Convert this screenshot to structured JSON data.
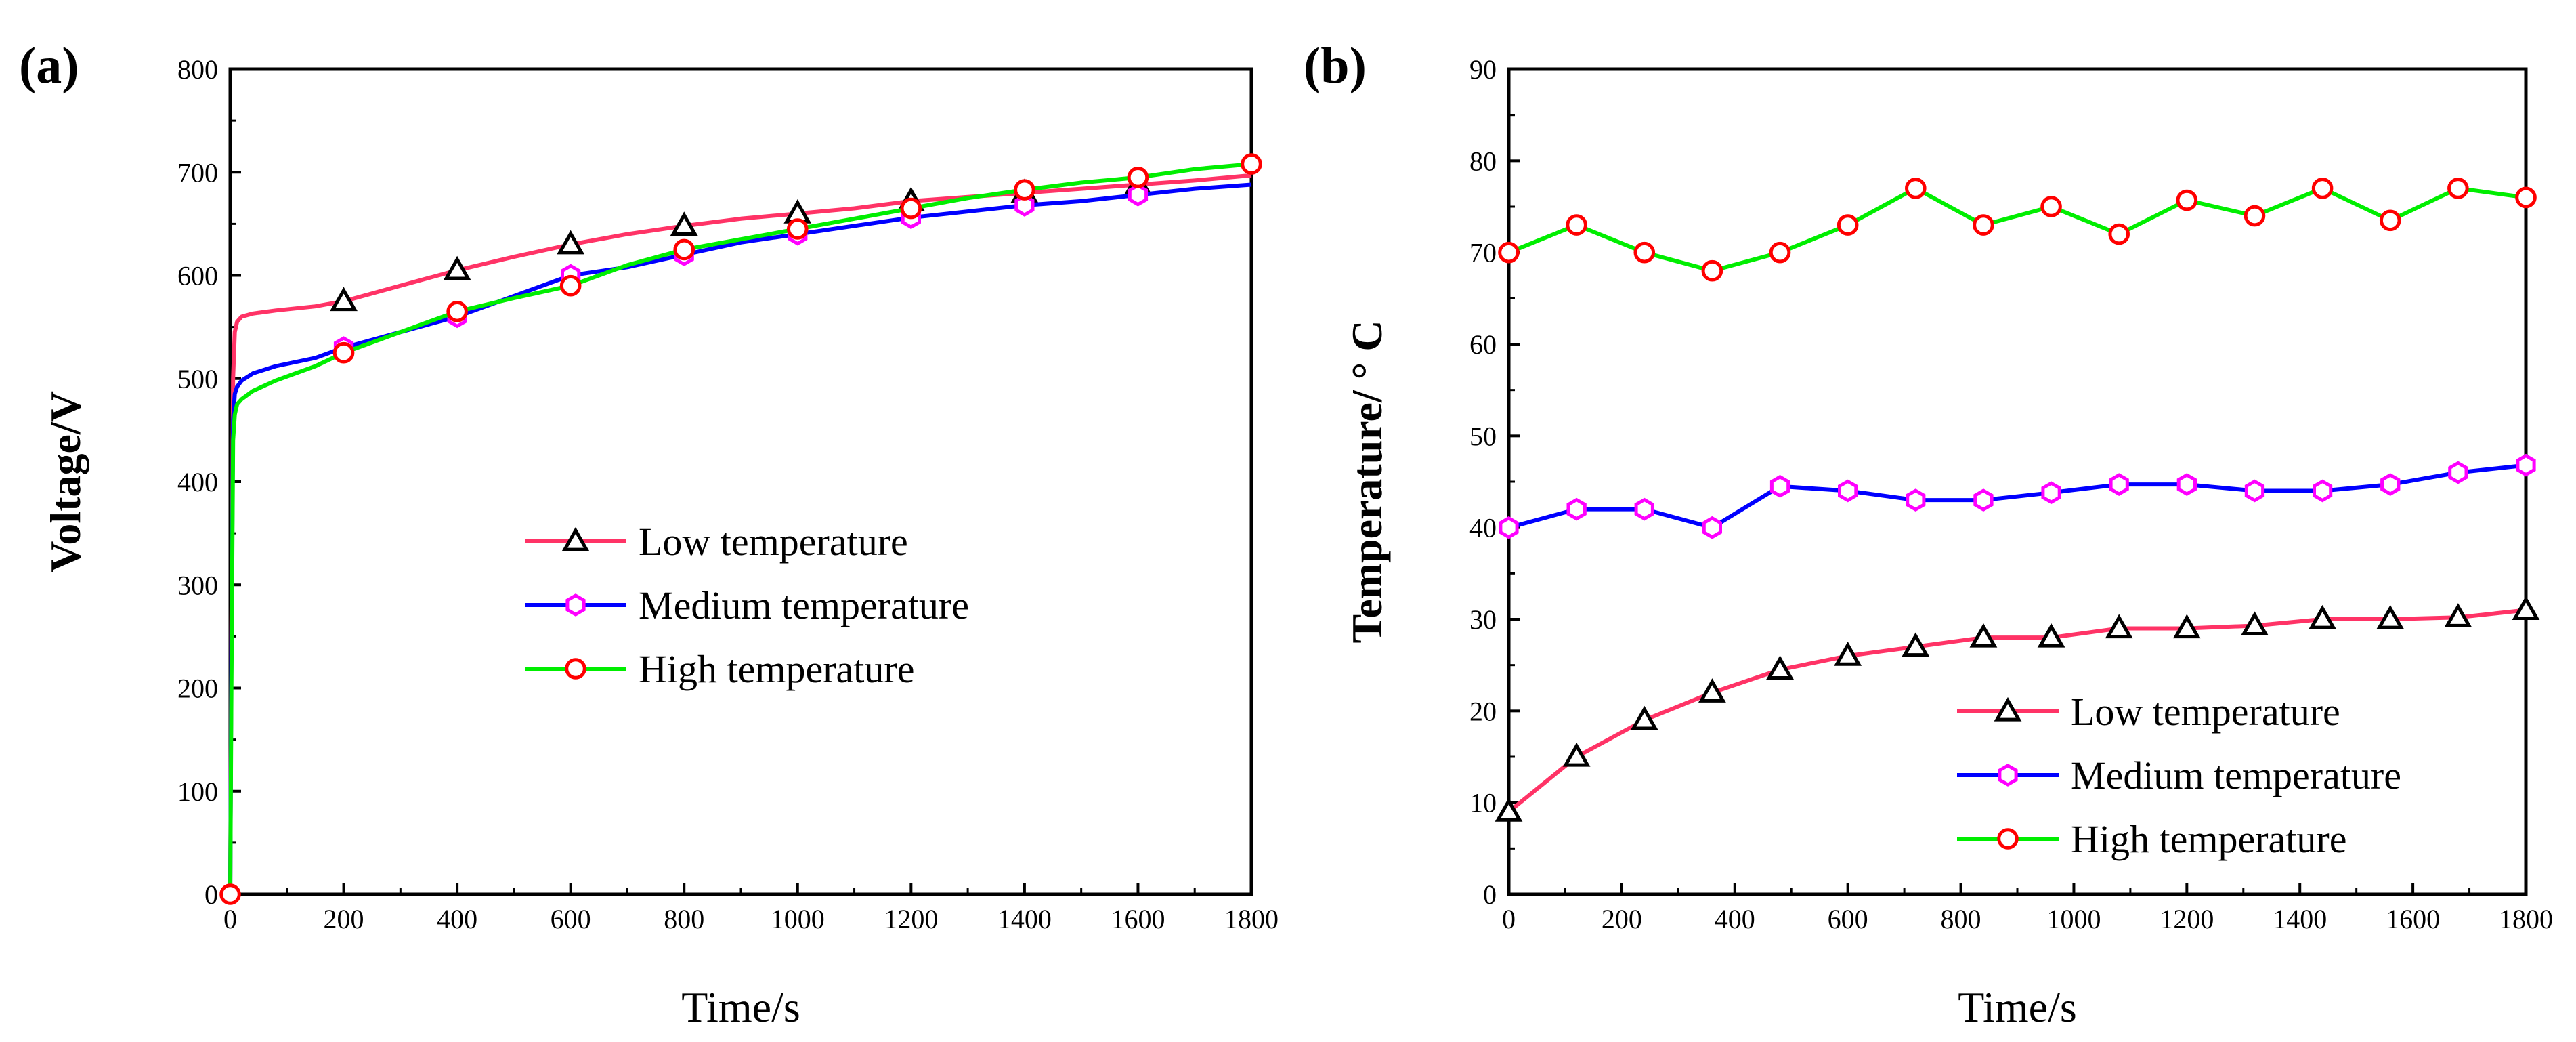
{
  "chart_data": [
    {
      "panel_label": "(a)",
      "type": "line",
      "xlabel": "Time/s",
      "ylabel": "Voltage/V",
      "xlim": [
        0,
        1800
      ],
      "ylim": [
        0,
        800
      ],
      "xticks": [
        0,
        200,
        400,
        600,
        800,
        1000,
        1200,
        1400,
        1600,
        1800
      ],
      "yticks": [
        0,
        100,
        200,
        300,
        400,
        500,
        600,
        700,
        800
      ],
      "legend_position": "center",
      "series": [
        {
          "name": "Low temperature",
          "color": "#ff3366",
          "marker": "triangle",
          "marker_color": "#000000",
          "x": [
            0,
            2,
            5,
            8,
            12,
            20,
            40,
            80,
            150,
            200,
            300,
            400,
            500,
            600,
            700,
            800,
            900,
            1000,
            1100,
            1200,
            1300,
            1400,
            1500,
            1600,
            1700,
            1800
          ],
          "y": [
            0,
            250,
            500,
            545,
            555,
            560,
            563,
            566,
            570,
            575,
            590,
            605,
            618,
            630,
            640,
            648,
            655,
            660,
            665,
            672,
            676,
            680,
            684,
            688,
            692,
            697
          ],
          "marker_x": [
            200,
            400,
            600,
            800,
            1000,
            1200,
            1400,
            1600
          ],
          "marker_y": [
            575,
            605,
            630,
            648,
            660,
            672,
            680,
            688
          ]
        },
        {
          "name": "Medium temperature",
          "color": "#0000ff",
          "marker": "hexagon",
          "marker_color": "#ff00ff",
          "x": [
            0,
            2,
            5,
            8,
            12,
            20,
            40,
            80,
            150,
            200,
            300,
            400,
            500,
            600,
            700,
            800,
            900,
            1000,
            1100,
            1200,
            1300,
            1400,
            1500,
            1600,
            1700,
            1800
          ],
          "y": [
            0,
            240,
            460,
            485,
            492,
            498,
            505,
            512,
            520,
            530,
            545,
            560,
            580,
            600,
            608,
            620,
            632,
            640,
            648,
            656,
            662,
            668,
            672,
            678,
            684,
            688
          ],
          "marker_x": [
            200,
            400,
            600,
            800,
            1000,
            1200,
            1400,
            1600
          ],
          "marker_y": [
            530,
            560,
            600,
            620,
            640,
            656,
            668,
            678
          ]
        },
        {
          "name": "High temperature",
          "color": "#00ee00",
          "marker": "circle",
          "marker_color": "#ff0000",
          "x": [
            0,
            2,
            5,
            8,
            12,
            20,
            40,
            80,
            150,
            200,
            300,
            400,
            500,
            600,
            700,
            800,
            900,
            1000,
            1100,
            1200,
            1300,
            1400,
            1500,
            1600,
            1700,
            1800
          ],
          "y": [
            0,
            200,
            440,
            465,
            475,
            480,
            488,
            498,
            512,
            525,
            545,
            565,
            578,
            590,
            610,
            625,
            635,
            645,
            655,
            665,
            675,
            683,
            690,
            695,
            703,
            708
          ],
          "marker_x": [
            0,
            200,
            400,
            600,
            800,
            1000,
            1200,
            1400,
            1600,
            1800
          ],
          "marker_y": [
            0,
            525,
            565,
            590,
            625,
            645,
            665,
            683,
            695,
            708
          ]
        }
      ]
    },
    {
      "panel_label": "(b)",
      "type": "line",
      "xlabel": "Time/s",
      "ylabel": "Temperature/ ° C",
      "xlim": [
        0,
        1800
      ],
      "ylim": [
        0,
        90
      ],
      "xticks": [
        0,
        200,
        400,
        600,
        800,
        1000,
        1200,
        1400,
        1600,
        1800
      ],
      "yticks": [
        0,
        10,
        20,
        30,
        40,
        50,
        60,
        70,
        80,
        90
      ],
      "legend_position": "lower-right",
      "series": [
        {
          "name": "Low temperature",
          "color": "#ff3366",
          "marker": "triangle",
          "marker_color": "#000000",
          "x": [
            0,
            120,
            240,
            360,
            480,
            600,
            720,
            840,
            960,
            1080,
            1200,
            1320,
            1440,
            1560,
            1680,
            1800
          ],
          "y": [
            9,
            15,
            19,
            22,
            24.5,
            26,
            27,
            28,
            28,
            29,
            29,
            29.3,
            30,
            30,
            30.2,
            31
          ]
        },
        {
          "name": "Medium temperature",
          "color": "#0000ff",
          "marker": "hexagon",
          "marker_color": "#ff00ff",
          "x": [
            0,
            120,
            240,
            360,
            480,
            600,
            720,
            840,
            960,
            1080,
            1200,
            1320,
            1440,
            1560,
            1680,
            1800
          ],
          "y": [
            40,
            42,
            42,
            40,
            44.5,
            44,
            43,
            43,
            43.8,
            44.7,
            44.7,
            44,
            44,
            44.7,
            46,
            46.8
          ]
        },
        {
          "name": "High temperature",
          "color": "#00ee00",
          "marker": "circle",
          "marker_color": "#ff0000",
          "x": [
            0,
            120,
            240,
            360,
            480,
            600,
            720,
            840,
            960,
            1080,
            1200,
            1320,
            1440,
            1560,
            1680,
            1800
          ],
          "y": [
            70,
            73,
            70,
            68,
            70,
            73,
            77,
            73,
            75,
            72,
            75.7,
            74,
            77,
            73.5,
            77,
            76
          ]
        }
      ]
    }
  ]
}
